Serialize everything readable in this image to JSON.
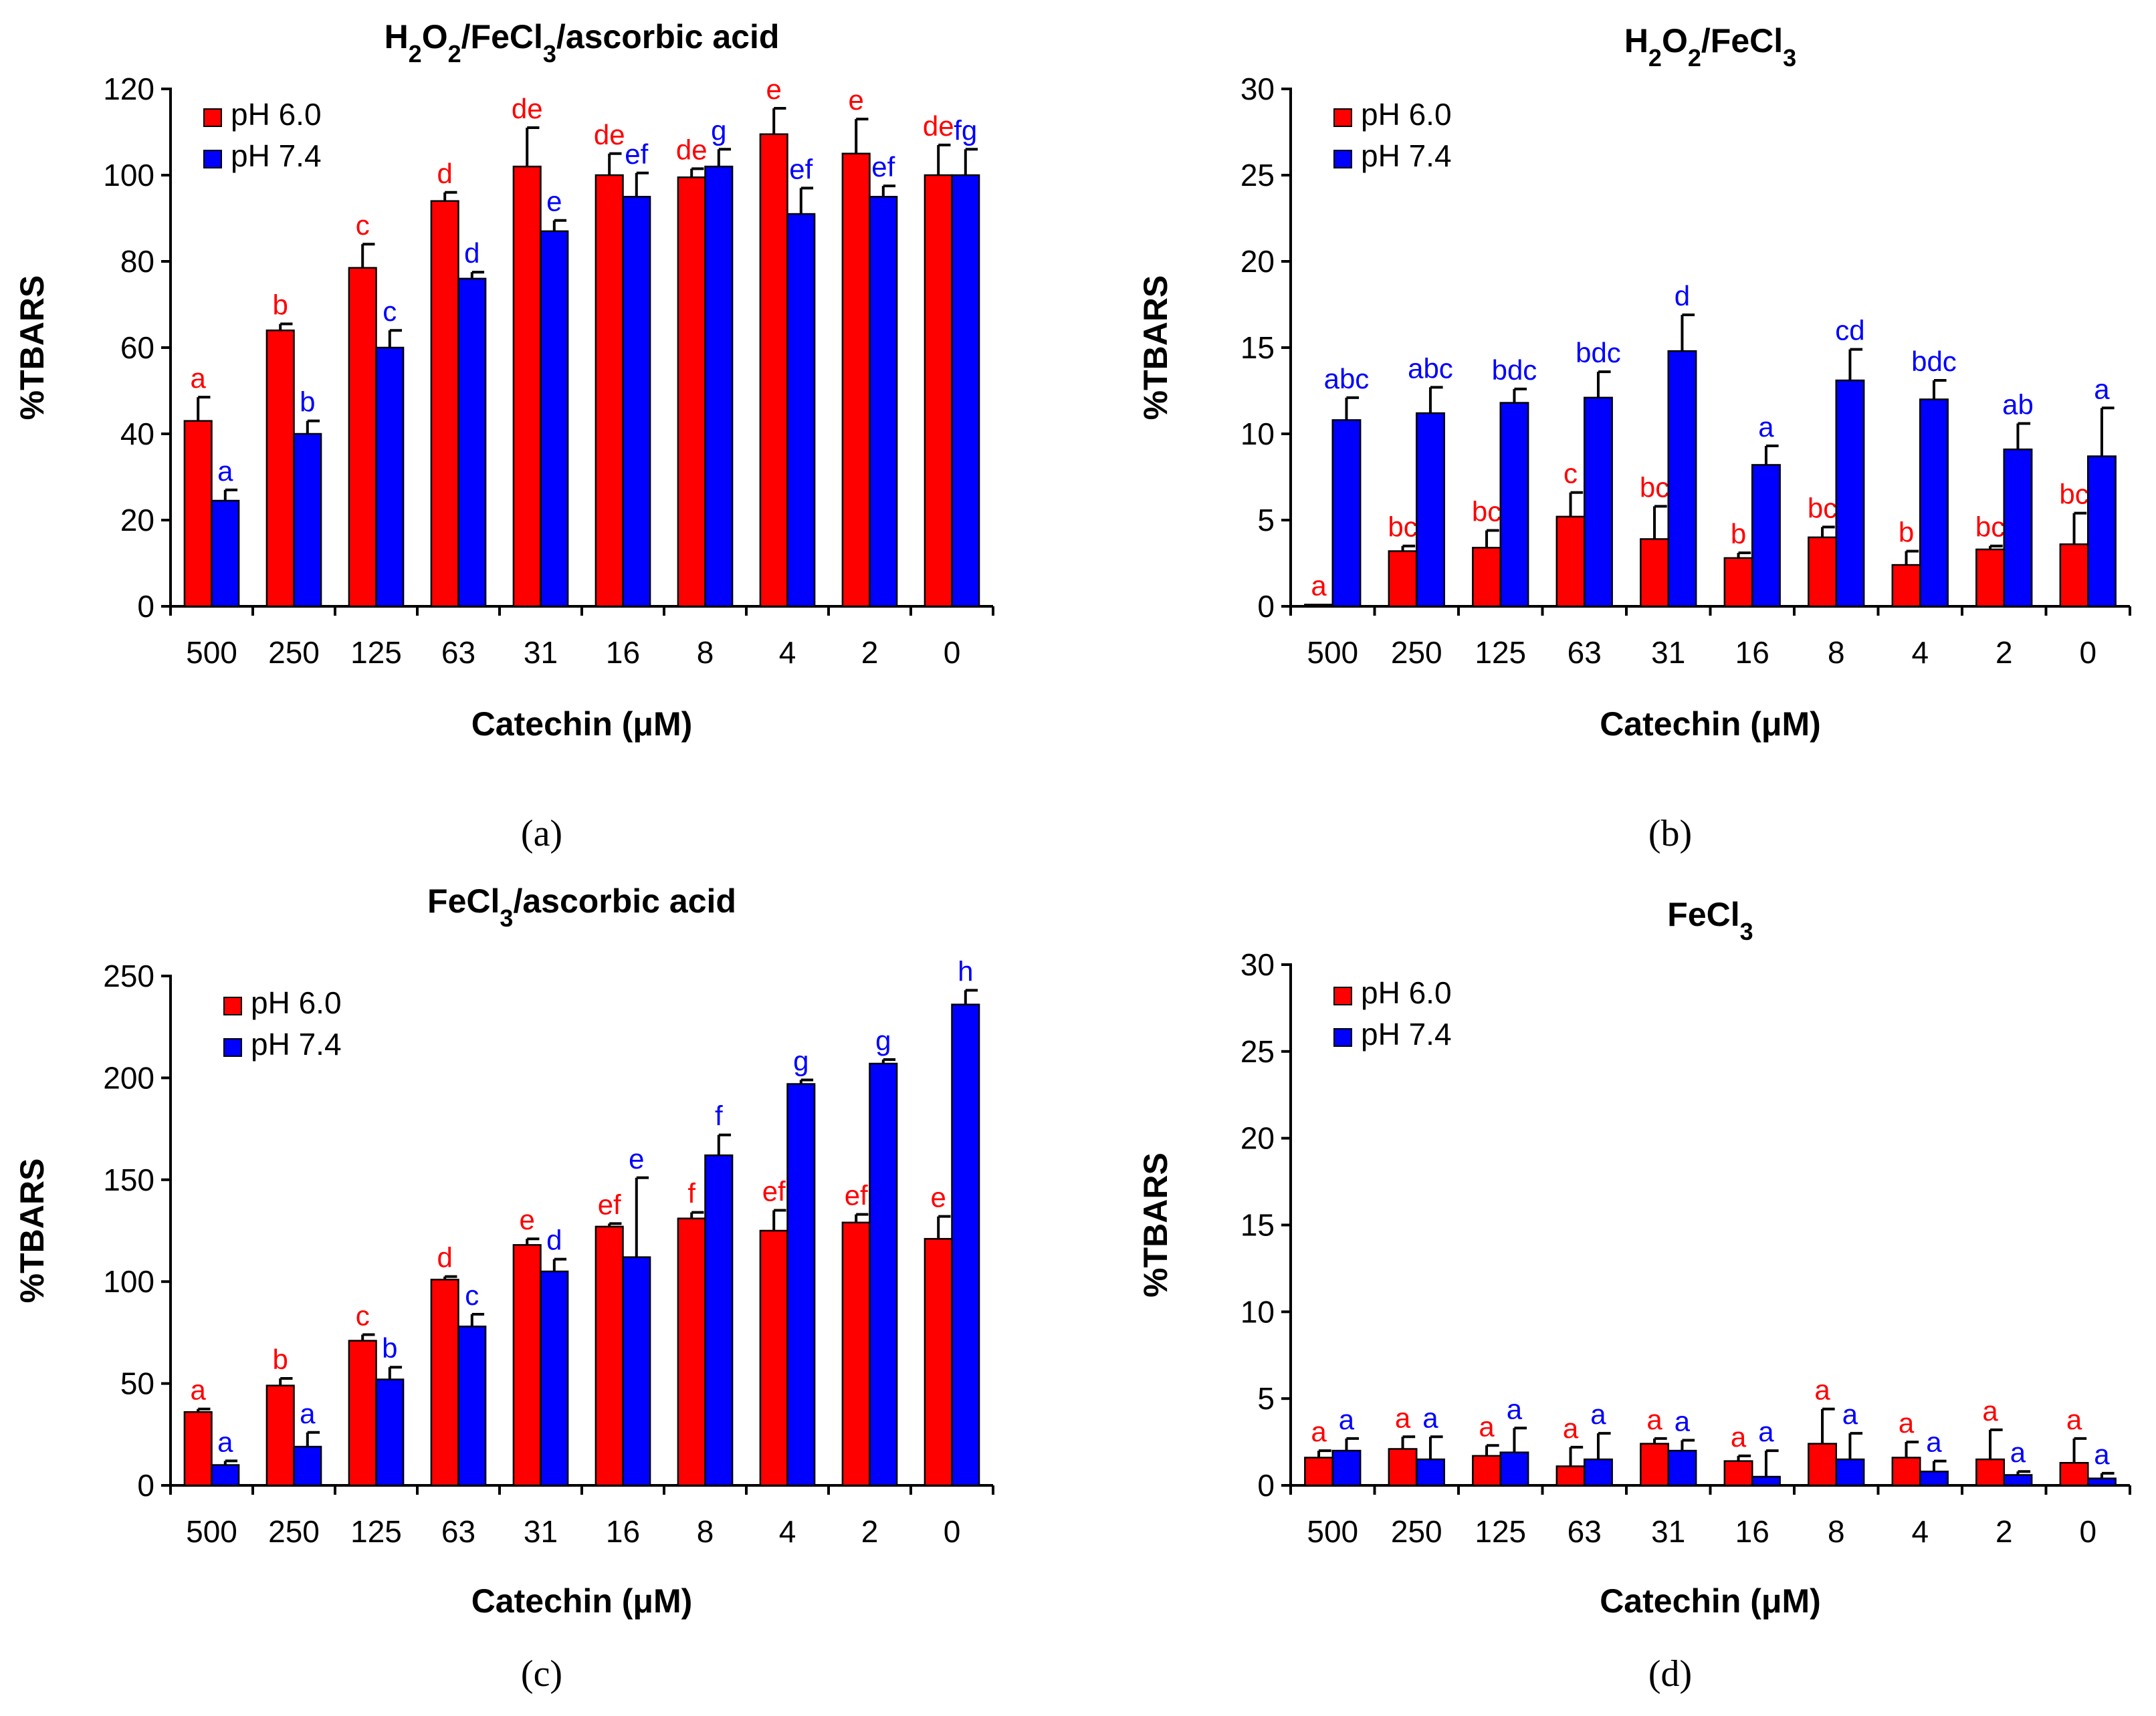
{
  "chart_data": [
    {
      "type": "bar",
      "title_parts": [
        [
          "H",
          ""
        ],
        [
          "2",
          "sub"
        ],
        [
          "O",
          ""
        ],
        [
          "2",
          "sub"
        ],
        [
          "/FeCl",
          ""
        ],
        [
          "3",
          "sub"
        ],
        [
          "/ascorbic acid",
          ""
        ]
      ],
      "caption": "(a)",
      "xlabel": "Catechin (μM)",
      "ylabel": "%TBARS",
      "ylim": [
        0,
        120
      ],
      "ytick_step": 20,
      "categories": [
        "500",
        "250",
        "125",
        "63",
        "31",
        "16",
        "8",
        "4",
        "2",
        "0"
      ],
      "series": [
        {
          "name": "pH 6.0",
          "color": "#ff0000",
          "label_color": "#ff0000",
          "values": [
            43,
            64,
            78.5,
            94,
            102,
            100,
            99.5,
            109.5,
            105,
            100
          ],
          "errors": [
            5.5,
            1.5,
            5.5,
            2,
            9,
            5,
            2,
            6,
            8,
            7
          ],
          "letters": [
            "a",
            "b",
            "c",
            "d",
            "de",
            "de",
            "de",
            "e",
            "e",
            "de"
          ]
        },
        {
          "name": "pH 7.4",
          "color": "#0000ff",
          "label_color": "#0000ff",
          "values": [
            24.5,
            40,
            60,
            76,
            87,
            95,
            102,
            91,
            95,
            100
          ],
          "errors": [
            2.5,
            3,
            4,
            1.5,
            2.5,
            5.5,
            4,
            6,
            2.5,
            6
          ],
          "letters": [
            "a",
            "b",
            "c",
            "d",
            "e",
            "ef",
            "g",
            "ef",
            "ef",
            "fg"
          ]
        }
      ],
      "legend": "top-left"
    },
    {
      "type": "bar",
      "title_parts": [
        [
          "H",
          ""
        ],
        [
          "2",
          "sub"
        ],
        [
          "O",
          ""
        ],
        [
          "2",
          "sub"
        ],
        [
          "/FeCl",
          ""
        ],
        [
          "3",
          "sub"
        ]
      ],
      "caption": "(b)",
      "xlabel": "Catechin (μM)",
      "ylabel": "%TBARS",
      "ylim": [
        0,
        30
      ],
      "ytick_step": 5,
      "categories": [
        "500",
        "250",
        "125",
        "63",
        "31",
        "16",
        "8",
        "4",
        "2",
        "0"
      ],
      "series": [
        {
          "name": "pH 6.0",
          "color": "#ff0000",
          "label_color": "#ff0000",
          "values": [
            0.1,
            3.2,
            3.4,
            5.2,
            3.9,
            2.8,
            4.0,
            2.4,
            3.3,
            3.6
          ],
          "errors": [
            0,
            0.3,
            1.0,
            1.4,
            1.9,
            0.3,
            0.6,
            0.8,
            0.2,
            1.8
          ],
          "letters": [
            "a",
            "bc",
            "bc",
            "c",
            "bc",
            "b",
            "bc",
            "b",
            "bc",
            "bc"
          ]
        },
        {
          "name": "pH 7.4",
          "color": "#0000ff",
          "label_color": "#0000ff",
          "values": [
            10.8,
            11.2,
            11.8,
            12.1,
            14.8,
            8.2,
            13.1,
            12.0,
            9.1,
            8.7
          ],
          "errors": [
            1.3,
            1.5,
            0.8,
            1.5,
            2.1,
            1.1,
            1.8,
            1.1,
            1.5,
            2.8
          ],
          "letters": [
            "abc",
            "abc",
            "bdc",
            "bdc",
            "d",
            "a",
            "cd",
            "bdc",
            "ab",
            "a"
          ]
        }
      ],
      "legend": "top-left"
    },
    {
      "type": "bar",
      "title_parts": [
        [
          "FeCl",
          ""
        ],
        [
          "3",
          "sub"
        ],
        [
          "/ascorbic acid",
          ""
        ]
      ],
      "caption": "(c)",
      "xlabel": "Catechin (μM)",
      "ylabel": "%TBARS",
      "ylim": [
        0,
        250
      ],
      "ytick_step": 50,
      "categories": [
        "500",
        "250",
        "125",
        "63",
        "31",
        "16",
        "8",
        "4",
        "2",
        "0"
      ],
      "series": [
        {
          "name": "pH 6.0",
          "color": "#ff0000",
          "label_color": "#ff0000",
          "values": [
            36,
            49,
            71,
            101,
            118,
            127,
            131,
            125,
            129,
            121
          ],
          "errors": [
            1.5,
            3.5,
            3,
            1.5,
            3,
            1.5,
            3,
            10,
            4,
            11
          ],
          "letters": [
            "a",
            "b",
            "c",
            "d",
            "e",
            "ef",
            "f",
            "ef",
            "ef",
            "e"
          ]
        },
        {
          "name": "pH 7.4",
          "color": "#0000ff",
          "label_color": "#0000ff",
          "values": [
            10,
            19,
            52,
            78,
            105,
            112,
            162,
            197,
            207,
            236
          ],
          "errors": [
            2,
            7,
            6,
            6,
            6,
            39,
            10,
            2,
            2,
            7
          ],
          "letters": [
            "a",
            "a",
            "b",
            "c",
            "d",
            "e",
            "f",
            "g",
            "g",
            "h"
          ]
        }
      ],
      "legend": "top-left"
    },
    {
      "type": "bar",
      "title_parts": [
        [
          "FeCl",
          ""
        ],
        [
          "3",
          "sub"
        ]
      ],
      "caption": "(d)",
      "xlabel": "Catechin (μM)",
      "ylabel": "%TBARS",
      "ylim": [
        0,
        30
      ],
      "ytick_step": 5,
      "categories": [
        "500",
        "250",
        "125",
        "63",
        "31",
        "16",
        "8",
        "4",
        "2",
        "0"
      ],
      "series": [
        {
          "name": "pH 6.0",
          "color": "#ff0000",
          "label_color": "#ff0000",
          "values": [
            1.6,
            2.1,
            1.7,
            1.1,
            2.4,
            1.4,
            2.4,
            1.6,
            1.5,
            1.3
          ],
          "errors": [
            0.4,
            0.7,
            0.6,
            1.1,
            0.3,
            0.3,
            2.0,
            0.9,
            1.7,
            1.4
          ],
          "letters": [
            "a",
            "a",
            "a",
            "a",
            "a",
            "a",
            "a",
            "a",
            "a",
            "a"
          ]
        },
        {
          "name": "pH 7.4",
          "color": "#0000ff",
          "label_color": "#0000ff",
          "values": [
            2.0,
            1.5,
            1.9,
            1.5,
            2.0,
            0.5,
            1.5,
            0.8,
            0.6,
            0.4
          ],
          "errors": [
            0.7,
            1.3,
            1.4,
            1.5,
            0.6,
            1.5,
            1.5,
            0.6,
            0.2,
            0.3
          ],
          "letters": [
            "a",
            "a",
            "a",
            "a",
            "a",
            "a",
            "a",
            "a",
            "a",
            "a"
          ]
        }
      ],
      "legend": "top-left"
    }
  ]
}
